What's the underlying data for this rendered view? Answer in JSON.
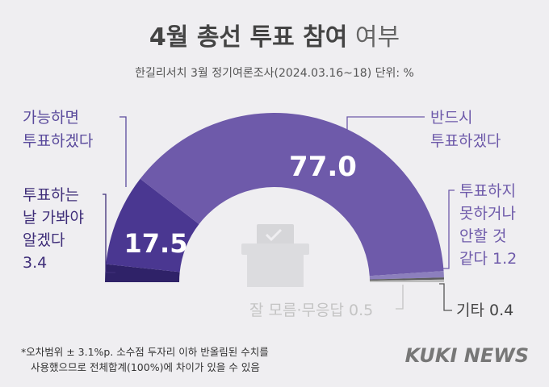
{
  "header": {
    "title_bold": "4월 총선 투표 참여",
    "title_light": " 여부",
    "subtitle": "한길리서치 3월 정기여론조사(2024.03.16~18) 단위: %"
  },
  "chart_data": {
    "type": "pie",
    "subtype": "semicircle-donut",
    "title": "4월 총선 투표 참여 여부",
    "unit": "%",
    "slices": [
      {
        "label_lines": [
          "투표하는",
          "날 가봐야",
          "알겠다",
          "3.4"
        ],
        "value": 3.4,
        "value_text": "3.4",
        "color": "#2f2268",
        "label_color": "#3f2e79"
      },
      {
        "label_lines": [
          "가능하면",
          "투표하겠다"
        ],
        "value": 17.5,
        "value_text": "17.5",
        "color": "#4a3791",
        "label_color": "#5a4a9c"
      },
      {
        "label_lines": [
          "반드시",
          "투표하겠다"
        ],
        "value": 77.0,
        "value_text": "77.0",
        "color": "#6e5aaa",
        "label_color": "#6e5aaa"
      },
      {
        "label_lines": [
          "투표하지",
          "못하거나",
          "안할 것",
          "같다 1.2"
        ],
        "value": 1.2,
        "value_text": "1.2",
        "color": "#8c7fbd",
        "label_color": "#6e5aaa"
      },
      {
        "label_lines": [
          "기타 0.4"
        ],
        "value": 0.4,
        "value_text": "0.4",
        "color": "#5c5c5c",
        "label_color": "#444444"
      },
      {
        "label_lines": [
          "잘 모름·무응답 0.5"
        ],
        "value": 0.5,
        "value_text": "0.5",
        "color": "#bdbdbd",
        "label_color": "#c4c4c4"
      }
    ]
  },
  "footer": {
    "note_line1": "*오차범위 ± 3.1%p. 소수점 두자리 이하 반올림된 수치를",
    "note_line2": "사용했으므로 전체합계(100%)에 차이가 있을 수 있음",
    "logo": "KUKI NEWS"
  },
  "icons": {
    "ballot_box": "ballot-box-icon"
  },
  "colors": {
    "background": "#efeef1",
    "title": "#444444",
    "accent": "#6e5aaa"
  }
}
